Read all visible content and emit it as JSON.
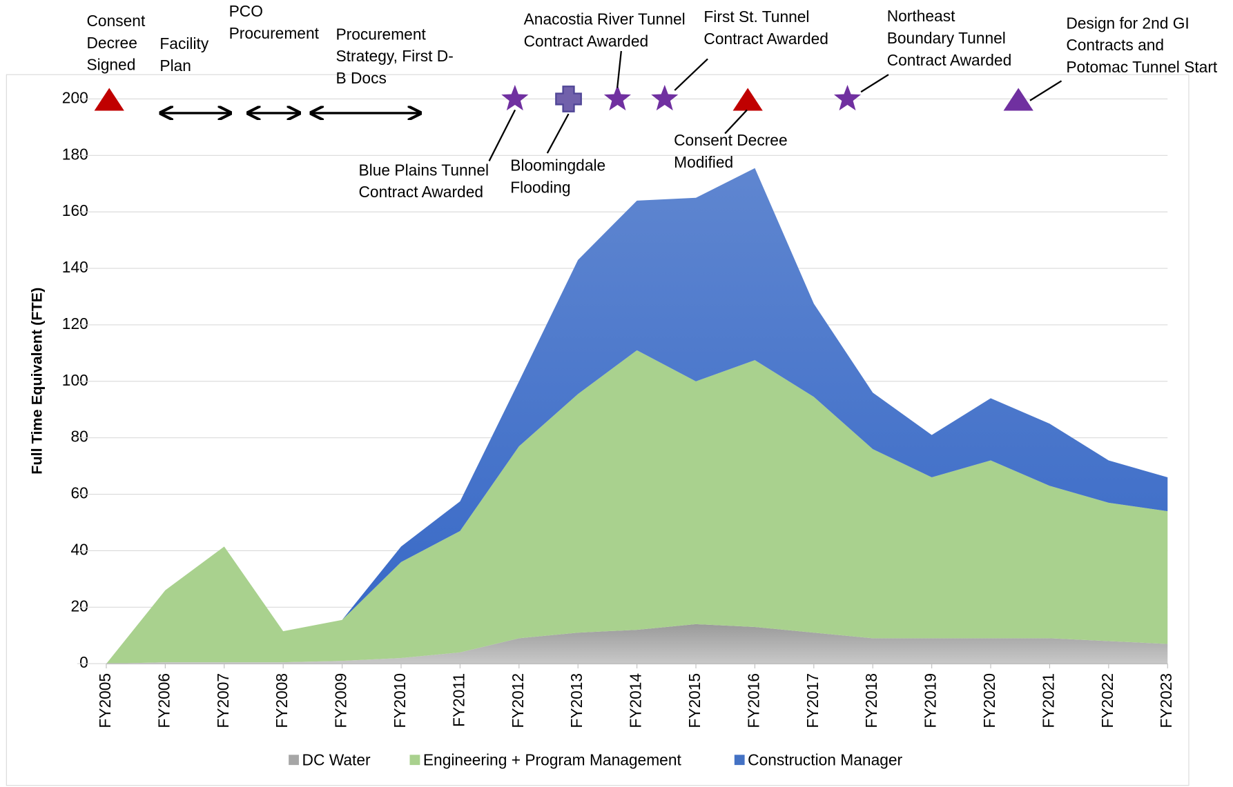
{
  "chart_data": {
    "type": "stacked_area",
    "ylabel": "Full Time Equivalent (FTE)",
    "categories": [
      "FY2005",
      "FY2006",
      "FY2007",
      "FY2008",
      "FY2009",
      "FY2010",
      "FY2011",
      "FY2012",
      "FY2013",
      "FY2014",
      "FY2015",
      "FY2016",
      "FY2017",
      "FY2018",
      "FY2019",
      "FY2020",
      "FY2021",
      "FY2022",
      "FY2023"
    ],
    "series": [
      {
        "name": "DC Water",
        "color": "#a6a6a6",
        "values": [
          0,
          0.5,
          0.5,
          0.5,
          1,
          2,
          4,
          9,
          11,
          12,
          14,
          13,
          11,
          9,
          9,
          9,
          9,
          8,
          7
        ]
      },
      {
        "name": "Engineering + Program Management",
        "color": "#a9d18e",
        "values": [
          0,
          25.5,
          41,
          11,
          14.5,
          34,
          43,
          68,
          84.5,
          99,
          86,
          94.5,
          83.5,
          67,
          57,
          63,
          54,
          49,
          47
        ]
      },
      {
        "name": "Construction Manager",
        "color": "#4472c4",
        "values": [
          0,
          0,
          0,
          0,
          0,
          5.5,
          10.5,
          23,
          47.5,
          53,
          65,
          68,
          33,
          20,
          15,
          22,
          22,
          15,
          12
        ]
      }
    ],
    "ylim": [
      0,
      200
    ],
    "yticks": [
      0,
      20,
      40,
      60,
      80,
      100,
      120,
      140,
      160,
      180,
      200
    ],
    "grid": true,
    "legend": "bottom",
    "annotations": [
      {
        "text": [
          "Consent",
          "Decree",
          "Signed"
        ],
        "marker": "triangle",
        "color": "#c00000",
        "x": 0.05,
        "y": 200
      },
      {
        "text": [
          "Blue Plains Tunnel",
          "Contract Awarded"
        ],
        "marker": "star",
        "color": "#7030a0",
        "x": 6.93,
        "y": 200
      },
      {
        "text": [
          "Bloomingdale",
          "Flooding"
        ],
        "marker": "plus",
        "color": "#7161ab",
        "x": 7.84,
        "y": 200
      },
      {
        "text": [
          "Anacostia River Tunnel",
          "Contract Awarded"
        ],
        "marker": "star",
        "color": "#7030a0",
        "x": 8.67,
        "y": 200
      },
      {
        "text": [
          "First St. Tunnel",
          "Contract Awarded"
        ],
        "marker": "star",
        "color": "#7030a0",
        "x": 9.47,
        "y": 200
      },
      {
        "text": [
          "Consent Decree",
          "Modified"
        ],
        "marker": "triangle",
        "color": "#c00000",
        "x": 10.88,
        "y": 200
      },
      {
        "text": [
          "Northeast",
          "Boundary Tunnel",
          "Contract Awarded"
        ],
        "marker": "star",
        "color": "#7030a0",
        "x": 12.57,
        "y": 200
      },
      {
        "text": [
          "Design for  2nd GI",
          "Contracts and",
          "Potomac Tunnel Start"
        ],
        "marker": "triangle",
        "color": "#7030a0",
        "x": 15.47,
        "y": 200
      }
    ],
    "periods": [
      {
        "text": [
          "Facility",
          "Plan"
        ],
        "start": 0.92,
        "end": 2.11,
        "y": 195
      },
      {
        "text": [
          "PCO",
          "Procurement"
        ],
        "start": 2.4,
        "end": 3.28,
        "y": 195
      },
      {
        "text": [
          "Procurement",
          "Strategy, First D-",
          "B Docs"
        ],
        "start": 3.47,
        "end": 5.33,
        "y": 195
      }
    ]
  }
}
